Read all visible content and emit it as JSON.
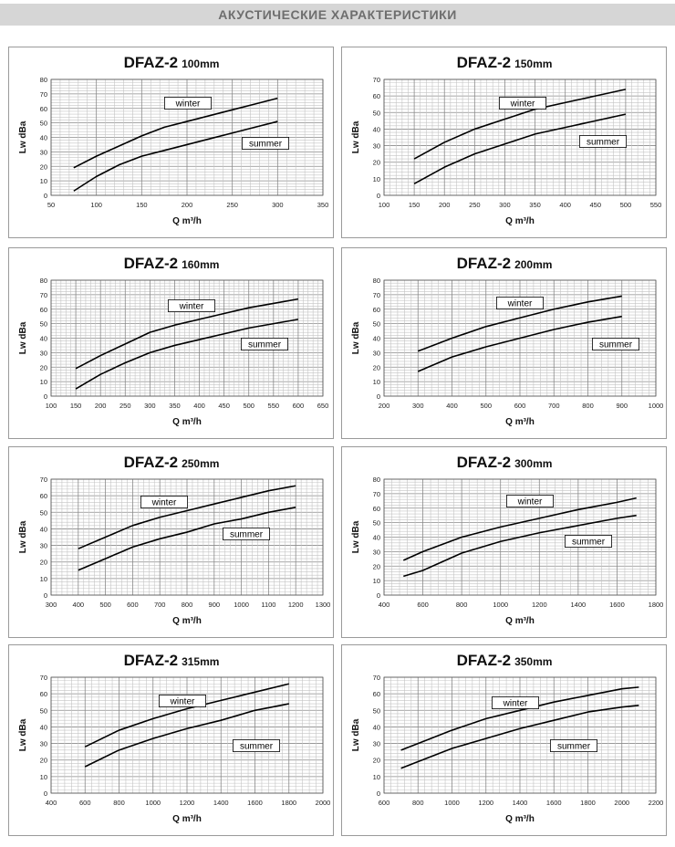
{
  "header": {
    "title": "АКУСТИЧЕСКИЕ  ХАРАКТЕРИСТИКИ"
  },
  "chart_data": [
    {
      "type": "line",
      "title": "DFAZ-2",
      "subtitle": "100mm",
      "xlabel": "Q m³/h",
      "ylabel": "Lw dBa",
      "xlim": [
        50,
        350
      ],
      "xticks": [
        50,
        100,
        150,
        200,
        250,
        300,
        350
      ],
      "ylim": [
        0,
        80
      ],
      "yticks": [
        0,
        10,
        20,
        30,
        40,
        50,
        60,
        70,
        80
      ],
      "grid": true,
      "series": [
        {
          "name": "winter",
          "x": [
            75,
            100,
            125,
            150,
            175,
            200,
            225,
            250,
            275,
            300
          ],
          "y": [
            19,
            27,
            34,
            41,
            47,
            51,
            55,
            59,
            63,
            67
          ]
        },
        {
          "name": "summer",
          "x": [
            75,
            100,
            125,
            150,
            175,
            200,
            225,
            250,
            275,
            300
          ],
          "y": [
            3,
            13,
            21,
            27,
            31,
            35,
            39,
            43,
            47,
            51
          ]
        }
      ]
    },
    {
      "type": "line",
      "title": "DFAZ-2",
      "subtitle": "150mm",
      "xlabel": "Q m³/h",
      "ylabel": "Lw dBa",
      "xlim": [
        100,
        550
      ],
      "xticks": [
        100,
        150,
        200,
        250,
        300,
        350,
        400,
        450,
        500,
        550
      ],
      "ylim": [
        0,
        70
      ],
      "yticks": [
        0,
        10,
        20,
        30,
        40,
        50,
        60,
        70
      ],
      "grid": true,
      "series": [
        {
          "name": "winter",
          "x": [
            150,
            200,
            250,
            300,
            350,
            400,
            450,
            500
          ],
          "y": [
            22,
            32,
            40,
            46,
            52,
            56,
            60,
            64
          ]
        },
        {
          "name": "summer",
          "x": [
            150,
            200,
            250,
            300,
            350,
            400,
            450,
            500
          ],
          "y": [
            7,
            17,
            25,
            31,
            37,
            41,
            45,
            49
          ]
        }
      ]
    },
    {
      "type": "line",
      "title": "DFAZ-2",
      "subtitle": "160mm",
      "xlabel": "Q m³/h",
      "ylabel": "Lw dBa",
      "xlim": [
        100,
        650
      ],
      "xticks": [
        100,
        150,
        200,
        250,
        300,
        350,
        400,
        450,
        500,
        550,
        600,
        650
      ],
      "ylim": [
        0,
        80
      ],
      "yticks": [
        0,
        10,
        20,
        30,
        40,
        50,
        60,
        70,
        80
      ],
      "grid": true,
      "series": [
        {
          "name": "winter",
          "x": [
            150,
            200,
            250,
            300,
            350,
            400,
            450,
            500,
            550,
            600
          ],
          "y": [
            19,
            28,
            36,
            44,
            49,
            53,
            57,
            61,
            64,
            67
          ]
        },
        {
          "name": "summer",
          "x": [
            150,
            200,
            250,
            300,
            350,
            400,
            450,
            500,
            550,
            600
          ],
          "y": [
            5,
            15,
            23,
            30,
            35,
            39,
            43,
            47,
            50,
            53
          ]
        }
      ]
    },
    {
      "type": "line",
      "title": "DFAZ-2",
      "subtitle": "200mm",
      "xlabel": "Q m³/h",
      "ylabel": "Lw dBa",
      "xlim": [
        200,
        1000
      ],
      "xticks": [
        200,
        300,
        400,
        500,
        600,
        700,
        800,
        900,
        1000
      ],
      "ylim": [
        0,
        80
      ],
      "yticks": [
        0,
        10,
        20,
        30,
        40,
        50,
        60,
        70,
        80
      ],
      "grid": true,
      "series": [
        {
          "name": "winter",
          "x": [
            300,
            400,
            500,
            600,
            700,
            800,
            900
          ],
          "y": [
            31,
            40,
            48,
            54,
            60,
            65,
            69
          ]
        },
        {
          "name": "summer",
          "x": [
            300,
            400,
            500,
            600,
            700,
            800,
            900
          ],
          "y": [
            17,
            27,
            34,
            40,
            46,
            51,
            55
          ]
        }
      ]
    },
    {
      "type": "line",
      "title": "DFAZ-2",
      "subtitle": "250mm",
      "xlabel": "Q m³/h",
      "ylabel": "Lw dBa",
      "xlim": [
        300,
        1300
      ],
      "xticks": [
        300,
        400,
        500,
        600,
        700,
        800,
        900,
        1000,
        1100,
        1200,
        1300
      ],
      "ylim": [
        0,
        70
      ],
      "yticks": [
        0,
        10,
        20,
        30,
        40,
        50,
        60,
        70
      ],
      "grid": true,
      "series": [
        {
          "name": "winter",
          "x": [
            400,
            500,
            600,
            700,
            800,
            900,
            1000,
            1100,
            1200
          ],
          "y": [
            28,
            35,
            42,
            47,
            51,
            55,
            59,
            63,
            66
          ]
        },
        {
          "name": "summer",
          "x": [
            400,
            500,
            600,
            700,
            800,
            900,
            1000,
            1100,
            1200
          ],
          "y": [
            15,
            22,
            29,
            34,
            38,
            43,
            46,
            50,
            53
          ]
        }
      ]
    },
    {
      "type": "line",
      "title": "DFAZ-2",
      "subtitle": "300mm",
      "xlabel": "Q m³/h",
      "ylabel": "Lw dBa",
      "xlim": [
        400,
        1800
      ],
      "xticks": [
        400,
        600,
        800,
        1000,
        1200,
        1400,
        1600,
        1800
      ],
      "ylim": [
        0,
        80
      ],
      "yticks": [
        0,
        10,
        20,
        30,
        40,
        50,
        60,
        70,
        80
      ],
      "grid": true,
      "series": [
        {
          "name": "winter",
          "x": [
            500,
            600,
            800,
            1000,
            1200,
            1400,
            1600,
            1700
          ],
          "y": [
            24,
            30,
            40,
            47,
            53,
            59,
            64,
            67
          ]
        },
        {
          "name": "summer",
          "x": [
            500,
            600,
            800,
            1000,
            1200,
            1400,
            1600,
            1700
          ],
          "y": [
            13,
            17,
            29,
            37,
            43,
            48,
            53,
            55
          ]
        }
      ]
    },
    {
      "type": "line",
      "title": "DFAZ-2",
      "subtitle": "315mm",
      "xlabel": "Q m³/h",
      "ylabel": "Lw dBa",
      "xlim": [
        400,
        2000
      ],
      "xticks": [
        400,
        600,
        800,
        1000,
        1200,
        1400,
        1600,
        1800,
        2000
      ],
      "ylim": [
        0,
        70
      ],
      "yticks": [
        0,
        10,
        20,
        30,
        40,
        50,
        60,
        70
      ],
      "grid": true,
      "series": [
        {
          "name": "winter",
          "x": [
            600,
            800,
            1000,
            1200,
            1400,
            1600,
            1800
          ],
          "y": [
            28,
            38,
            45,
            51,
            56,
            61,
            66
          ]
        },
        {
          "name": "summer",
          "x": [
            600,
            800,
            1000,
            1200,
            1400,
            1600,
            1800
          ],
          "y": [
            16,
            26,
            33,
            39,
            44,
            50,
            54
          ]
        }
      ]
    },
    {
      "type": "line",
      "title": "DFAZ-2",
      "subtitle": "350mm",
      "xlabel": "Q m³/h",
      "ylabel": "Lw dBa",
      "xlim": [
        600,
        2200
      ],
      "xticks": [
        600,
        800,
        1000,
        1200,
        1400,
        1600,
        1800,
        2000,
        2200
      ],
      "ylim": [
        0,
        70
      ],
      "yticks": [
        0,
        10,
        20,
        30,
        40,
        50,
        60,
        70
      ],
      "grid": true,
      "series": [
        {
          "name": "winter",
          "x": [
            700,
            800,
            1000,
            1200,
            1400,
            1600,
            1800,
            2000,
            2100
          ],
          "y": [
            26,
            30,
            38,
            45,
            50,
            55,
            59,
            63,
            64
          ]
        },
        {
          "name": "summer",
          "x": [
            700,
            800,
            1000,
            1200,
            1400,
            1600,
            1800,
            2000,
            2100
          ],
          "y": [
            15,
            19,
            27,
            33,
            39,
            44,
            49,
            52,
            53
          ]
        }
      ]
    }
  ]
}
